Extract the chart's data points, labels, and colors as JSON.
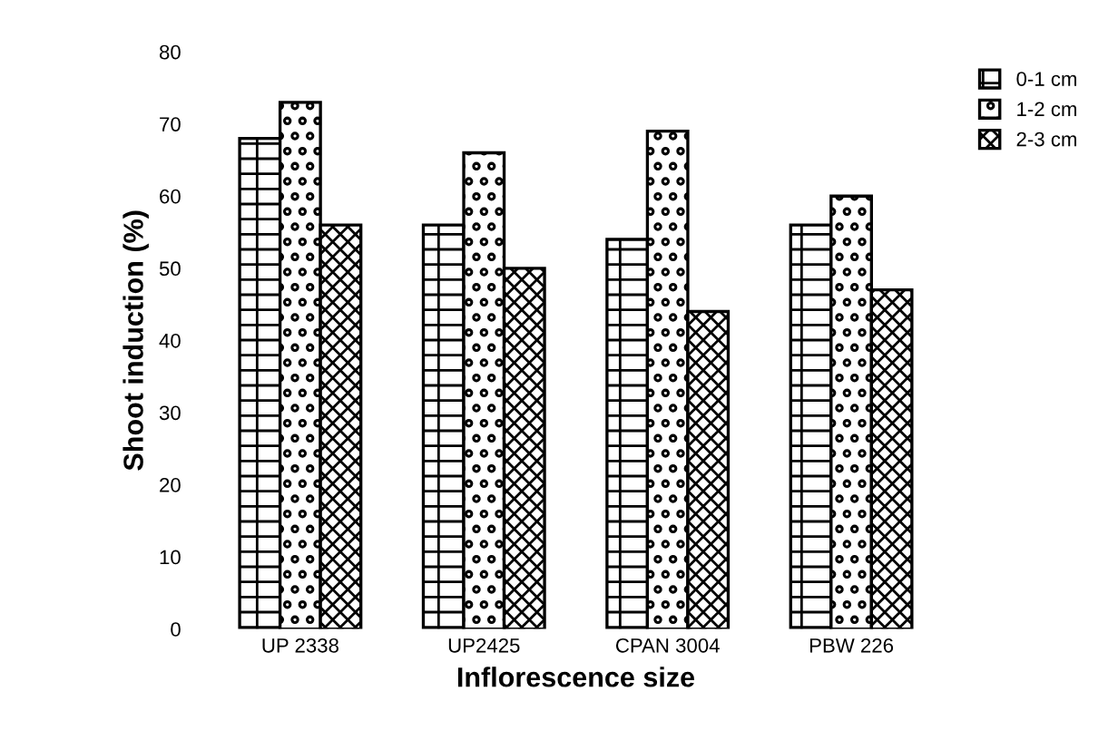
{
  "chart_data": {
    "type": "bar",
    "xlabel": "Inflorescence size",
    "ylabel": "Shoot induction (%)",
    "categories": [
      "UP 2338",
      "UP2425",
      "CPAN 3004",
      "PBW 226"
    ],
    "series": [
      {
        "name": "0-1 cm",
        "color": "#000000",
        "values": [
          68,
          56,
          54,
          56
        ]
      },
      {
        "name": "1-2 cm",
        "color": "#000000",
        "values": [
          73,
          66,
          69,
          60
        ]
      },
      {
        "name": "2-3 cm",
        "color": "#000000",
        "values": [
          56,
          50,
          44,
          47
        ]
      }
    ],
    "ylim": [
      0,
      80
    ],
    "yticks": [
      0,
      10,
      20,
      30,
      40,
      50,
      60,
      70,
      80
    ],
    "grid": false,
    "legend": "top right"
  }
}
